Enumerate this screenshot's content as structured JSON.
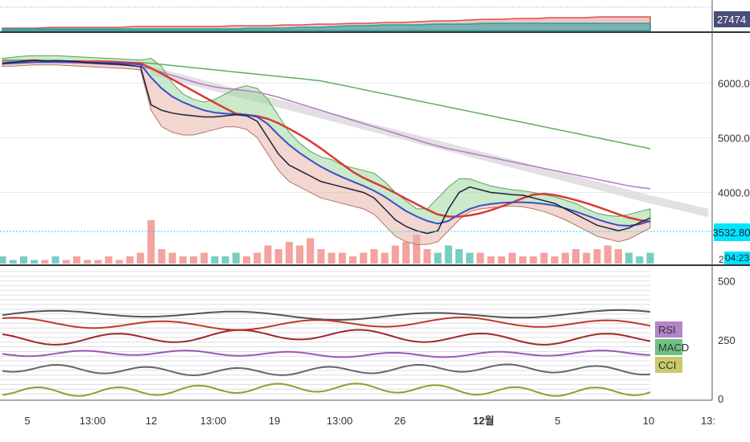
{
  "chart_data": [
    {
      "type": "area",
      "panel": "top-strip",
      "price_label": "27474",
      "series": [
        {
          "color": "#d9534f",
          "values": [
            3,
            3,
            3,
            4,
            4,
            4,
            4,
            4,
            5,
            5,
            5,
            5,
            5,
            5,
            6,
            6,
            6,
            7,
            7,
            8,
            8,
            9,
            9,
            10,
            10,
            11,
            12,
            12,
            13,
            14,
            14,
            15,
            15,
            16,
            16,
            16,
            17,
            17,
            17,
            17
          ]
        },
        {
          "color": "#1fa3a3",
          "values": [
            2,
            2,
            2,
            2,
            2,
            2,
            2,
            2,
            2,
            2,
            2,
            2,
            2,
            2,
            2,
            3,
            3,
            3,
            4,
            4,
            5,
            6,
            6,
            7,
            7,
            7,
            8,
            8,
            8,
            9,
            9,
            9,
            9,
            9,
            9,
            9,
            9,
            9,
            9,
            9
          ]
        }
      ]
    },
    {
      "type": "line",
      "panel": "price",
      "x_ticks": [
        "5",
        "13:00",
        "12",
        "13:00",
        "19",
        "13:00",
        "26",
        "12월",
        "5",
        "10",
        "13:"
      ],
      "y_ticks": [
        4000,
        5000,
        6000
      ],
      "ylim": [
        2700,
        6900
      ],
      "price_label": "3532.80",
      "time_label": "04:23",
      "volume_axis_label": "2",
      "price": [
        6360,
        6380,
        6400,
        6420,
        6400,
        6410,
        6405,
        6390,
        6370,
        6360,
        6350,
        6340,
        6320,
        6300,
        5600,
        5500,
        5450,
        5420,
        5400,
        5380,
        5380,
        5400,
        5420,
        5400,
        5300,
        5000,
        4700,
        4500,
        4400,
        4300,
        4200,
        4150,
        4100,
        4050,
        4000,
        3900,
        3700,
        3500,
        3380,
        3300,
        3250,
        3300,
        3700,
        4000,
        4100,
        4050,
        4000,
        3980,
        3960,
        3950,
        3900,
        3850,
        3800,
        3700,
        3600,
        3500,
        3400,
        3350,
        3300,
        3350,
        3450,
        3532
      ],
      "ema": [
        6350,
        6360,
        6370,
        6380,
        6380,
        6385,
        6385,
        6380,
        6375,
        6370,
        6365,
        6360,
        6350,
        6340,
        6100,
        5900,
        5750,
        5650,
        5570,
        5500,
        5460,
        5440,
        5430,
        5420,
        5380,
        5250,
        5050,
        4870,
        4720,
        4590,
        4470,
        4370,
        4280,
        4200,
        4120,
        4030,
        3920,
        3790,
        3660,
        3560,
        3480,
        3430,
        3480,
        3600,
        3700,
        3760,
        3790,
        3810,
        3820,
        3820,
        3810,
        3790,
        3760,
        3710,
        3650,
        3580,
        3510,
        3450,
        3400,
        3390,
        3420,
        3480
      ],
      "upper_band": [
        6450,
        6470,
        6490,
        6500,
        6500,
        6500,
        6490,
        6480,
        6470,
        6460,
        6450,
        6440,
        6430,
        6420,
        6450,
        6300,
        6000,
        5800,
        5700,
        5650,
        5700,
        5800,
        5900,
        5950,
        5900,
        5700,
        5400,
        5100,
        4900,
        4750,
        4650,
        4600,
        4500,
        4450,
        4400,
        4350,
        4200,
        4000,
        3850,
        3700,
        3700,
        3900,
        4100,
        4250,
        4250,
        4180,
        4120,
        4080,
        4050,
        4030,
        4000,
        3960,
        3920,
        3860,
        3800,
        3700,
        3620,
        3580,
        3560,
        3600,
        3650,
        3700
      ],
      "lower_band": [
        6300,
        6310,
        6320,
        6330,
        6330,
        6330,
        6320,
        6310,
        6300,
        6290,
        6280,
        6270,
        6260,
        6240,
        5500,
        5200,
        5100,
        5050,
        5050,
        5100,
        5150,
        5200,
        5200,
        5150,
        5000,
        4700,
        4400,
        4200,
        4100,
        4000,
        3900,
        3850,
        3800,
        3750,
        3700,
        3600,
        3400,
        3200,
        3100,
        3050,
        3050,
        3100,
        3300,
        3500,
        3650,
        3700,
        3720,
        3740,
        3750,
        3740,
        3700,
        3650,
        3580,
        3500,
        3400,
        3300,
        3200,
        3150,
        3100,
        3150,
        3250,
        3350
      ],
      "ma_long_a": [
        6400,
        6395,
        6390,
        6385,
        6380,
        6375,
        6370,
        6365,
        6360,
        6350,
        6340,
        6330,
        6320,
        6300,
        6260,
        6200,
        6140,
        6080,
        6020,
        5970,
        5930,
        5900,
        5880,
        5860,
        5830,
        5790,
        5740,
        5680,
        5620,
        5560,
        5500,
        5440,
        5380,
        5320,
        5260,
        5200,
        5140,
        5080,
        5020,
        4960,
        4900,
        4850,
        4800,
        4760,
        4720,
        4680,
        4640,
        4600,
        4560,
        4520,
        4480,
        4440,
        4400,
        4360,
        4320,
        4280,
        4240,
        4200,
        4160,
        4120,
        4090,
        4070
      ],
      "ma_long_b": [
        6420,
        6420,
        6420,
        6420,
        6415,
        6410,
        6405,
        6400,
        6395,
        6390,
        6385,
        6380,
        6375,
        6370,
        6360,
        6340,
        6320,
        6300,
        6280,
        6260,
        6240,
        6220,
        6200,
        6180,
        6160,
        6140,
        6120,
        6100,
        6080,
        6060,
        6040,
        6000,
        5960,
        5920,
        5880,
        5840,
        5800,
        5760,
        5720,
        5680,
        5640,
        5600,
        5560,
        5520,
        5480,
        5440,
        5400,
        5360,
        5320,
        5280,
        5240,
        5200,
        5160,
        5120,
        5080,
        5040,
        5000,
        4960,
        4920,
        4880,
        4840,
        4800
      ],
      "cloud_top": [
        null,
        null,
        null,
        null,
        null,
        null,
        null,
        null,
        null,
        null,
        null,
        null,
        null,
        null,
        6300,
        6260,
        6200,
        6150,
        6100,
        6050,
        6000,
        5950,
        5900,
        5850,
        5800,
        5750,
        5700,
        5650,
        5600,
        5550,
        5500,
        5450,
        5400,
        5350,
        5300,
        5250,
        5200,
        5150,
        5100,
        5050,
        5000,
        4950,
        4900,
        4850,
        4800,
        4750,
        4700,
        4650,
        4600,
        4550,
        4500,
        4450,
        4400,
        4350,
        4300,
        4250,
        4200,
        4150,
        4100,
        4050,
        4000,
        3950
      ],
      "cloud_bottom": [
        null,
        null,
        null,
        null,
        null,
        null,
        null,
        null,
        null,
        null,
        null,
        null,
        null,
        null,
        6150,
        6100,
        6050,
        6000,
        5950,
        5900,
        5850,
        5800,
        5750,
        5700,
        5650,
        5600,
        5550,
        5500,
        5450,
        5400,
        5350,
        5300,
        5250,
        5200,
        5150,
        5100,
        5050,
        5000,
        4950,
        4900,
        4850,
        4800,
        4750,
        4700,
        4650,
        4600,
        4550,
        4500,
        4450,
        4400,
        4350,
        4300,
        4250,
        4200,
        4150,
        4100,
        4050,
        4000,
        3950,
        3900,
        3850,
        3800
      ],
      "volume": [
        2,
        1,
        2,
        1,
        1,
        2,
        1,
        2,
        1,
        1,
        2,
        1,
        2,
        3,
        12,
        4,
        3,
        2,
        2,
        3,
        2,
        2,
        3,
        2,
        3,
        5,
        4,
        6,
        5,
        7,
        4,
        3,
        3,
        2,
        3,
        4,
        3,
        5,
        6,
        8,
        4,
        3,
        5,
        4,
        3,
        3,
        2,
        2,
        3,
        2,
        2,
        3,
        2,
        3,
        4,
        3,
        4,
        5,
        4,
        3,
        2,
        3
      ]
    },
    {
      "type": "line",
      "panel": "oscillators",
      "y_ticks": [
        0,
        250,
        500
      ],
      "legend": [
        "RSI",
        "MACD",
        "CCI"
      ],
      "lines": [
        {
          "color": "#555555",
          "base": 355,
          "amp": 14
        },
        {
          "color": "#c0392b",
          "base": 318,
          "amp": 18
        },
        {
          "color": "#a0282b",
          "base": 262,
          "amp": 22
        },
        {
          "color": "#9b59b6",
          "base": 190,
          "amp": 10
        },
        {
          "color": "#666666",
          "base": 122,
          "amp": 16
        },
        {
          "color": "#9a9a2a",
          "base": 38,
          "amp": 18
        }
      ]
    }
  ],
  "colors": {
    "price_line": "#1f1f3a",
    "ema": "#3b4fc9",
    "bb_fill": "#9fd8a0",
    "bb_fill_lower": "#e8b4a8",
    "ma_red": "#d93a34",
    "ma_purple": "#b679c9",
    "ma_green": "#5cae5c",
    "cloud": "#d9d9d9",
    "cyan": "#00e5ff",
    "axis_bg": "#ffffff",
    "label_dark": "#4a4e7a"
  }
}
